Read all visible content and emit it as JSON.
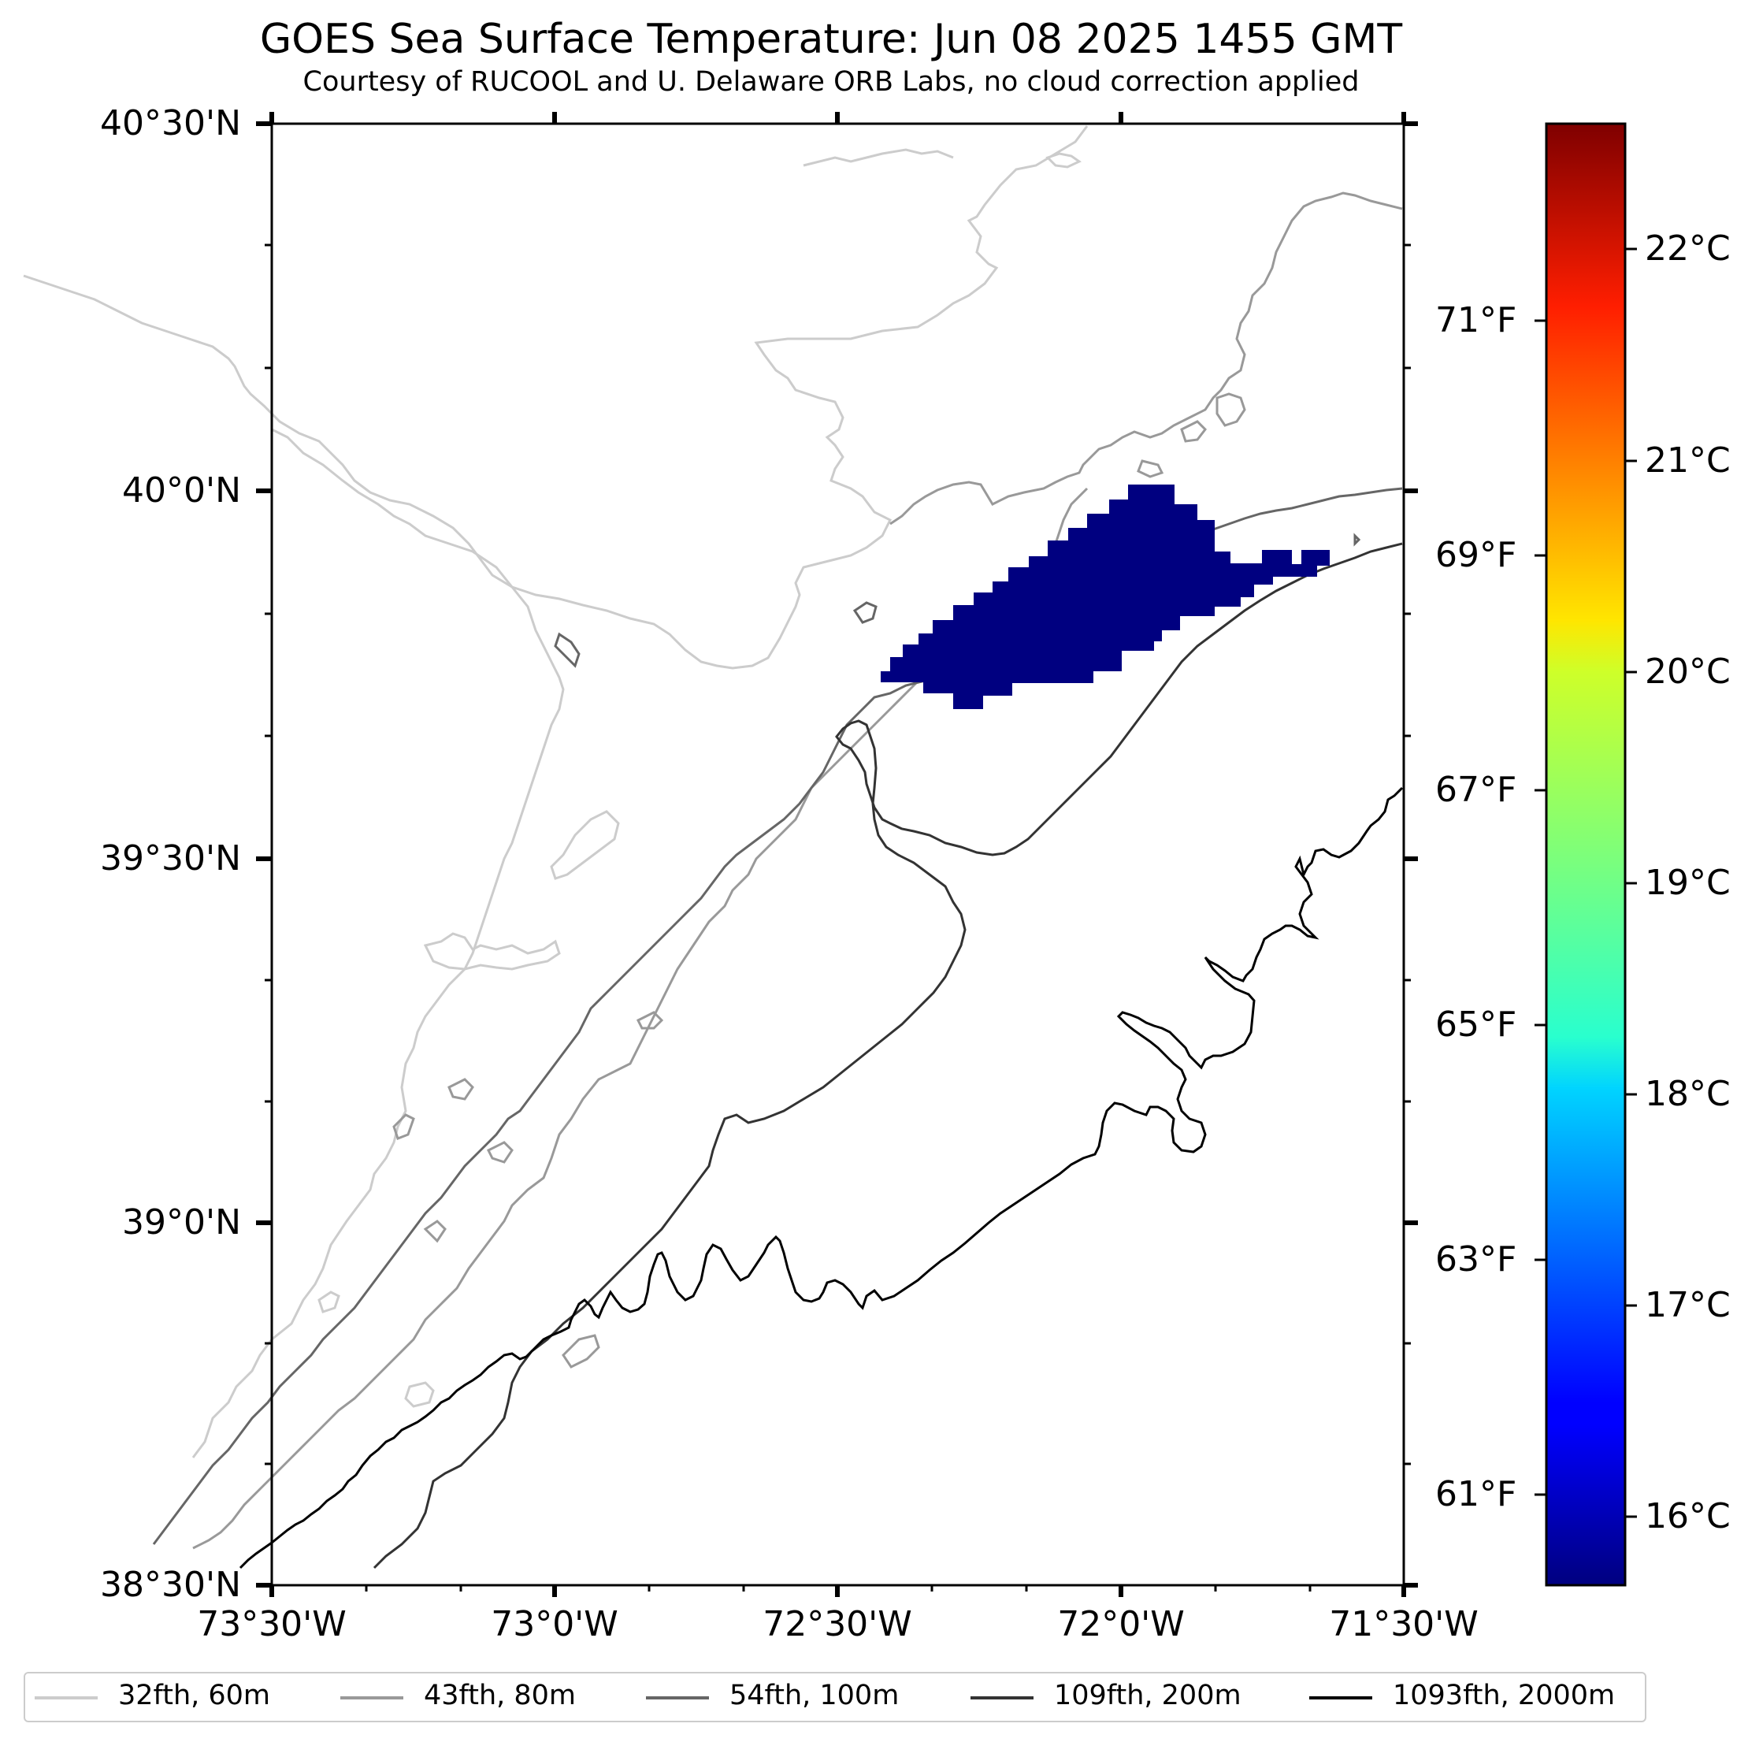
{
  "title": "GOES Sea Surface Temperature: Jun 08 2025 1455 GMT",
  "subtitle": "Courtesy of RUCOOL and U. Delaware ORB Labs, no cloud correction applied",
  "latitude_labels": [
    "40°30'N",
    "40°0'N",
    "39°30'N",
    "39°0'N",
    "38°30'N"
  ],
  "longitude_labels": [
    "73°30'W",
    "73°0'W",
    "72°30'W",
    "72°0'W",
    "71°30'W"
  ],
  "colorbar": {
    "celsius_labels": [
      "22°C",
      "21°C",
      "20°C",
      "19°C",
      "18°C",
      "17°C",
      "16°C"
    ],
    "fahrenheit_labels": [
      "71°F",
      "69°F",
      "67°F",
      "65°F",
      "63°F",
      "61°F"
    ],
    "colormap": "jet",
    "range_c": [
      15.7,
      22.6
    ]
  },
  "sst_patch": {
    "color": "#000080",
    "approx_temperature": "below 16°C"
  },
  "legend": [
    {
      "label": "32fth, 60m",
      "color": "#cccccc"
    },
    {
      "label": "43fth, 80m",
      "color": "#999999"
    },
    {
      "label": "54fth, 100m",
      "color": "#666666"
    },
    {
      "label": "109fth, 200m",
      "color": "#333333"
    },
    {
      "label": "1093fth, 2000m",
      "color": "#000000"
    }
  ]
}
